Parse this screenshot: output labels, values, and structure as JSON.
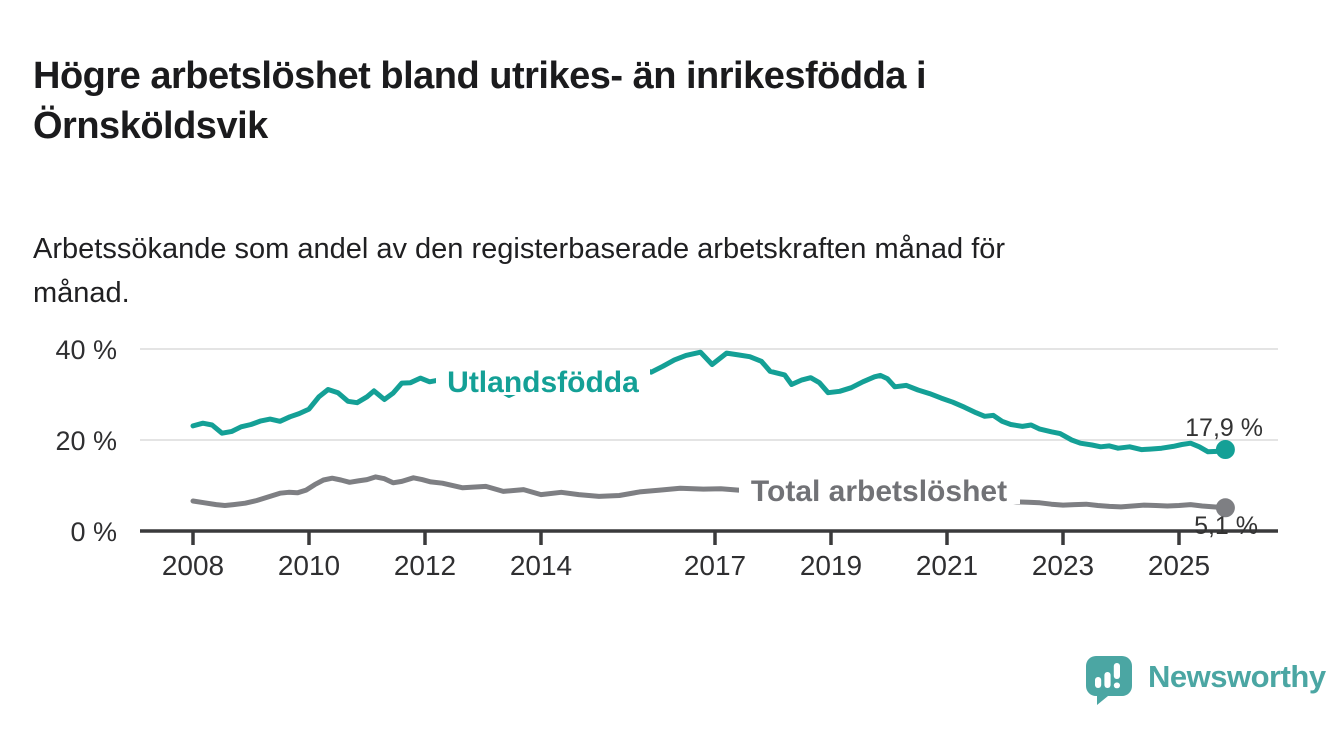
{
  "title_lines": [
    "Högre arbetslöshet bland utrikes- än inrikesfödda i",
    "Örnsköldsvik"
  ],
  "subtitle_lines": [
    "Arbetssökande som andel av den registerbaserade arbetskraften månad för",
    "månad."
  ],
  "branding": {
    "logo_text": "Newsworthy",
    "logo_color": "#4ba6a3"
  },
  "chart_data": {
    "type": "line",
    "unit": "%",
    "grid": "horizontal",
    "legend_position": "inline-on-line",
    "x_range": [
      2008,
      2025.8
    ],
    "ylim": [
      0,
      44
    ],
    "x_ticks": [
      "2008",
      "2010",
      "2012",
      "2014",
      "2017",
      "2019",
      "2021",
      "2023",
      "2025"
    ],
    "x_tick_years": [
      2008,
      2010,
      2012,
      2014,
      2017,
      2019,
      2021,
      2023,
      2025
    ],
    "y_ticks": [
      {
        "value": 0,
        "label": "0 %"
      },
      {
        "value": 20,
        "label": "20 %"
      },
      {
        "value": 40,
        "label": "40 %"
      }
    ],
    "series": [
      {
        "name": "Utlandsfödda",
        "color": "#14a096",
        "end_value": 17.9,
        "end_label": "17,9 %",
        "points": [
          [
            2008.0,
            23.1
          ],
          [
            2008.17,
            23.7
          ],
          [
            2008.33,
            23.3
          ],
          [
            2008.5,
            21.5
          ],
          [
            2008.67,
            21.9
          ],
          [
            2008.83,
            22.9
          ],
          [
            2009.0,
            23.4
          ],
          [
            2009.17,
            24.2
          ],
          [
            2009.33,
            24.6
          ],
          [
            2009.5,
            24.1
          ],
          [
            2009.67,
            25.1
          ],
          [
            2009.83,
            25.8
          ],
          [
            2010.0,
            26.8
          ],
          [
            2010.17,
            29.5
          ],
          [
            2010.33,
            31.1
          ],
          [
            2010.5,
            30.4
          ],
          [
            2010.67,
            28.5
          ],
          [
            2010.83,
            28.2
          ],
          [
            2011.0,
            29.5
          ],
          [
            2011.12,
            30.8
          ],
          [
            2011.3,
            28.9
          ],
          [
            2011.45,
            30.3
          ],
          [
            2011.6,
            32.5
          ],
          [
            2011.75,
            32.6
          ],
          [
            2011.92,
            33.6
          ],
          [
            2012.08,
            32.8
          ],
          [
            2012.25,
            33.2
          ],
          [
            2012.42,
            33.8
          ],
          [
            2012.58,
            32.7
          ],
          [
            2012.75,
            32.3
          ],
          [
            2012.92,
            32.8
          ],
          [
            2013.1,
            32.3
          ],
          [
            2013.3,
            30.9
          ],
          [
            2013.45,
            29.8
          ],
          [
            2013.6,
            30.7
          ],
          [
            2013.75,
            31.4
          ],
          [
            2013.92,
            31.0
          ],
          [
            2014.1,
            31.8
          ],
          [
            2014.25,
            32.2
          ],
          [
            2014.42,
            31.7
          ],
          [
            2014.58,
            32.4
          ],
          [
            2014.75,
            33.0
          ],
          [
            2014.92,
            33.5
          ],
          [
            2015.1,
            34.2
          ],
          [
            2015.3,
            35.0
          ],
          [
            2015.45,
            35.5
          ],
          [
            2015.6,
            35.1
          ],
          [
            2015.75,
            35.6
          ],
          [
            2015.9,
            34.9
          ],
          [
            2016.1,
            36.2
          ],
          [
            2016.3,
            37.6
          ],
          [
            2016.5,
            38.6
          ],
          [
            2016.75,
            39.3
          ],
          [
            2016.95,
            36.6
          ],
          [
            2017.2,
            39.1
          ],
          [
            2017.4,
            38.7
          ],
          [
            2017.6,
            38.3
          ],
          [
            2017.8,
            37.3
          ],
          [
            2017.95,
            35.1
          ],
          [
            2018.2,
            34.3
          ],
          [
            2018.32,
            32.2
          ],
          [
            2018.5,
            33.2
          ],
          [
            2018.65,
            33.7
          ],
          [
            2018.8,
            32.6
          ],
          [
            2018.95,
            30.4
          ],
          [
            2019.15,
            30.7
          ],
          [
            2019.35,
            31.5
          ],
          [
            2019.55,
            32.8
          ],
          [
            2019.75,
            33.9
          ],
          [
            2019.85,
            34.2
          ],
          [
            2019.97,
            33.5
          ],
          [
            2020.1,
            31.7
          ],
          [
            2020.3,
            32.0
          ],
          [
            2020.5,
            31.0
          ],
          [
            2020.7,
            30.2
          ],
          [
            2020.9,
            29.2
          ],
          [
            2021.1,
            28.3
          ],
          [
            2021.3,
            27.2
          ],
          [
            2021.5,
            26.0
          ],
          [
            2021.65,
            25.2
          ],
          [
            2021.8,
            25.4
          ],
          [
            2021.95,
            24.1
          ],
          [
            2022.1,
            23.4
          ],
          [
            2022.3,
            23.0
          ],
          [
            2022.45,
            23.3
          ],
          [
            2022.6,
            22.4
          ],
          [
            2022.8,
            21.8
          ],
          [
            2022.95,
            21.4
          ],
          [
            2023.15,
            20.0
          ],
          [
            2023.3,
            19.3
          ],
          [
            2023.5,
            18.9
          ],
          [
            2023.65,
            18.5
          ],
          [
            2023.8,
            18.7
          ],
          [
            2023.95,
            18.2
          ],
          [
            2024.15,
            18.5
          ],
          [
            2024.35,
            17.9
          ],
          [
            2024.5,
            18.0
          ],
          [
            2024.7,
            18.2
          ],
          [
            2024.9,
            18.6
          ],
          [
            2025.05,
            19.0
          ],
          [
            2025.2,
            19.3
          ],
          [
            2025.35,
            18.5
          ],
          [
            2025.5,
            17.4
          ],
          [
            2025.65,
            17.5
          ],
          [
            2025.8,
            17.9
          ]
        ]
      },
      {
        "name": "Total arbetslöshet",
        "color": "#7e7f83",
        "end_value": 5.1,
        "end_label": "5,1 %",
        "points": [
          [
            2008.0,
            6.6
          ],
          [
            2008.2,
            6.2
          ],
          [
            2008.4,
            5.8
          ],
          [
            2008.55,
            5.6
          ],
          [
            2008.7,
            5.8
          ],
          [
            2008.9,
            6.1
          ],
          [
            2009.1,
            6.7
          ],
          [
            2009.3,
            7.5
          ],
          [
            2009.5,
            8.3
          ],
          [
            2009.65,
            8.5
          ],
          [
            2009.8,
            8.4
          ],
          [
            2009.95,
            9.0
          ],
          [
            2010.1,
            10.2
          ],
          [
            2010.25,
            11.2
          ],
          [
            2010.4,
            11.6
          ],
          [
            2010.55,
            11.2
          ],
          [
            2010.7,
            10.7
          ],
          [
            2010.85,
            11.0
          ],
          [
            2011.0,
            11.3
          ],
          [
            2011.15,
            11.9
          ],
          [
            2011.3,
            11.5
          ],
          [
            2011.45,
            10.6
          ],
          [
            2011.6,
            10.9
          ],
          [
            2011.8,
            11.7
          ],
          [
            2011.95,
            11.3
          ],
          [
            2012.1,
            10.8
          ],
          [
            2012.3,
            10.5
          ],
          [
            2012.65,
            9.5
          ],
          [
            2013.05,
            9.8
          ],
          [
            2013.35,
            8.7
          ],
          [
            2013.7,
            9.1
          ],
          [
            2014.0,
            8.0
          ],
          [
            2014.35,
            8.5
          ],
          [
            2014.65,
            8.0
          ],
          [
            2015.0,
            7.6
          ],
          [
            2015.35,
            7.8
          ],
          [
            2015.7,
            8.6
          ],
          [
            2016.05,
            9.0
          ],
          [
            2016.4,
            9.4
          ],
          [
            2016.8,
            9.2
          ],
          [
            2017.1,
            9.3
          ],
          [
            2017.4,
            9.0
          ],
          [
            2017.7,
            9.0
          ],
          [
            2018.0,
            8.8
          ],
          [
            2018.4,
            8.6
          ],
          [
            2018.8,
            8.5
          ],
          [
            2019.2,
            8.6
          ],
          [
            2019.6,
            8.7
          ],
          [
            2020.0,
            8.5
          ],
          [
            2020.3,
            8.8
          ],
          [
            2020.6,
            8.4
          ],
          [
            2021.0,
            8.0
          ],
          [
            2021.4,
            7.5
          ],
          [
            2021.8,
            7.0
          ],
          [
            2022.0,
            6.7
          ],
          [
            2022.2,
            6.4
          ],
          [
            2022.4,
            6.3
          ],
          [
            2022.6,
            6.2
          ],
          [
            2022.8,
            5.9
          ],
          [
            2023.0,
            5.7
          ],
          [
            2023.2,
            5.8
          ],
          [
            2023.4,
            5.9
          ],
          [
            2023.6,
            5.6
          ],
          [
            2023.8,
            5.4
          ],
          [
            2024.0,
            5.3
          ],
          [
            2024.2,
            5.5
          ],
          [
            2024.4,
            5.7
          ],
          [
            2024.6,
            5.6
          ],
          [
            2024.8,
            5.5
          ],
          [
            2025.0,
            5.6
          ],
          [
            2025.2,
            5.8
          ],
          [
            2025.4,
            5.5
          ],
          [
            2025.6,
            5.3
          ],
          [
            2025.8,
            5.1
          ]
        ]
      }
    ],
    "colors": {
      "grid": "#dbdbdb",
      "axis": "#3a3a3c",
      "tick_text": "#2f2f31",
      "end_label_text": "#333333"
    }
  }
}
